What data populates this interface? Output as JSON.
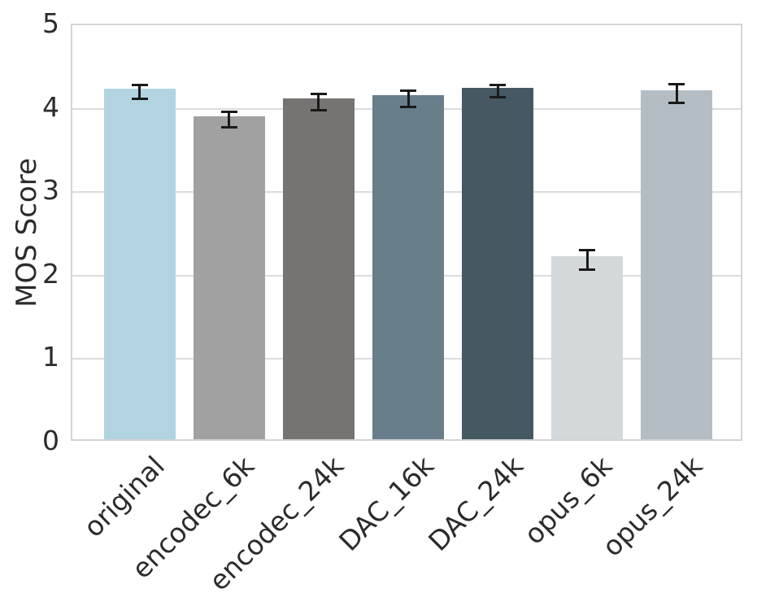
{
  "figure": {
    "ylabel": "MOS Score"
  },
  "chart_data": {
    "type": "bar",
    "title": "",
    "xlabel": "",
    "ylabel": "MOS Score",
    "categories": [
      "original",
      "encodec_6k",
      "encodec_24k",
      "DAC_16k",
      "DAC_24k",
      "opus_6k",
      "opus_24k"
    ],
    "values": [
      4.2,
      3.87,
      4.08,
      4.12,
      4.21,
      2.19,
      4.18
    ],
    "error_bars": [
      0.1,
      0.11,
      0.11,
      0.11,
      0.09,
      0.13,
      0.13
    ],
    "bar_colors": [
      "#b2d4e0",
      "#a1a1a1",
      "#767472",
      "#697e8b",
      "#465962",
      "#d3d8db",
      "#b4bdc4"
    ],
    "error_bar_color": "#1a1a1a",
    "ylim": [
      0,
      5
    ],
    "yticks": [
      "0",
      "1",
      "2",
      "3",
      "4",
      "5"
    ],
    "grid": "horizontal",
    "grid_color": "#dcdcdc",
    "spine_color": "#d4d4d4",
    "legend": "none",
    "x_tick_rotation_deg": 45
  }
}
